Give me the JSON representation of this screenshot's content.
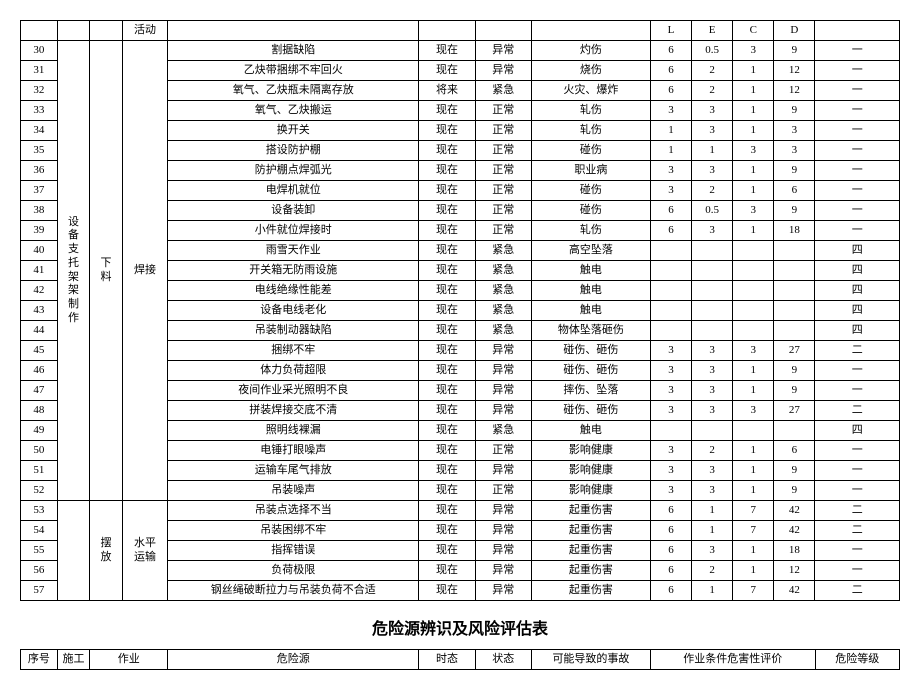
{
  "header_activity": "活动",
  "header_L": "L",
  "header_E": "E",
  "header_C": "C",
  "header_D": "D",
  "rows": [
    {
      "n": "30",
      "hz": "割据缺陷",
      "st": "现在",
      "zt": "异常",
      "jg": "灼伤",
      "L": "6",
      "E": "0.5",
      "C": "3",
      "D": "9",
      "lv": "一"
    },
    {
      "n": "31",
      "hz": "乙炔带捆绑不牢回火",
      "st": "现在",
      "zt": "异常",
      "jg": "烧伤",
      "L": "6",
      "E": "2",
      "C": "1",
      "D": "12",
      "lv": "一"
    },
    {
      "n": "32",
      "hz": "氧气、乙炔瓶未隔离存放",
      "st": "将来",
      "zt": "紧急",
      "jg": "火灾、爆炸",
      "L": "6",
      "E": "2",
      "C": "1",
      "D": "12",
      "lv": "一"
    },
    {
      "n": "33",
      "hz": "氧气、乙炔搬运",
      "st": "现在",
      "zt": "正常",
      "jg": "轧伤",
      "L": "3",
      "E": "3",
      "C": "1",
      "D": "9",
      "lv": "一"
    },
    {
      "n": "34",
      "hz": "换开关",
      "st": "现在",
      "zt": "正常",
      "jg": "轧伤",
      "L": "1",
      "E": "3",
      "C": "1",
      "D": "3",
      "lv": "一"
    },
    {
      "n": "35",
      "hz": "搭设防护棚",
      "st": "现在",
      "zt": "正常",
      "jg": "碰伤",
      "L": "1",
      "E": "1",
      "C": "3",
      "D": "3",
      "lv": "一"
    },
    {
      "n": "36",
      "hz": "防护棚点焊弧光",
      "st": "现在",
      "zt": "正常",
      "jg": "职业病",
      "L": "3",
      "E": "3",
      "C": "1",
      "D": "9",
      "lv": "一"
    },
    {
      "n": "37",
      "hz": "电焊机就位",
      "st": "现在",
      "zt": "正常",
      "jg": "碰伤",
      "L": "3",
      "E": "2",
      "C": "1",
      "D": "6",
      "lv": "一"
    },
    {
      "n": "38",
      "hz": "设备装卸",
      "st": "现在",
      "zt": "正常",
      "jg": "碰伤",
      "L": "6",
      "E": "0.5",
      "C": "3",
      "D": "9",
      "lv": "一"
    },
    {
      "n": "39",
      "hz": "小件就位焊接时",
      "st": "现在",
      "zt": "正常",
      "jg": "轧伤",
      "L": "6",
      "E": "3",
      "C": "1",
      "D": "18",
      "lv": "一"
    },
    {
      "n": "40",
      "hz": "雨雪天作业",
      "st": "现在",
      "zt": "紧急",
      "jg": "高空坠落",
      "L": "",
      "E": "",
      "C": "",
      "D": "",
      "lv": "四"
    },
    {
      "n": "41",
      "hz": "开关箱无防雨设施",
      "st": "现在",
      "zt": "紧急",
      "jg": "触电",
      "L": "",
      "E": "",
      "C": "",
      "D": "",
      "lv": "四"
    },
    {
      "n": "42",
      "hz": "电线绝缘性能差",
      "st": "现在",
      "zt": "紧急",
      "jg": "触电",
      "L": "",
      "E": "",
      "C": "",
      "D": "",
      "lv": "四"
    },
    {
      "n": "43",
      "hz": "设备电线老化",
      "st": "现在",
      "zt": "紧急",
      "jg": "触电",
      "L": "",
      "E": "",
      "C": "",
      "D": "",
      "lv": "四"
    },
    {
      "n": "44",
      "hz": "吊装制动器缺陷",
      "st": "现在",
      "zt": "紧急",
      "jg": "物体坠落砸伤",
      "L": "",
      "E": "",
      "C": "",
      "D": "",
      "lv": "四"
    },
    {
      "n": "45",
      "hz": "捆绑不牢",
      "st": "现在",
      "zt": "异常",
      "jg": "碰伤、砸伤",
      "L": "3",
      "E": "3",
      "C": "3",
      "D": "27",
      "lv": "二"
    },
    {
      "n": "46",
      "hz": "体力负荷超限",
      "st": "现在",
      "zt": "异常",
      "jg": "碰伤、砸伤",
      "L": "3",
      "E": "3",
      "C": "1",
      "D": "9",
      "lv": "一"
    },
    {
      "n": "47",
      "hz": "夜间作业采光照明不良",
      "st": "现在",
      "zt": "异常",
      "jg": "摔伤、坠落",
      "L": "3",
      "E": "3",
      "C": "1",
      "D": "9",
      "lv": "一"
    },
    {
      "n": "48",
      "hz": "拼装焊接交底不清",
      "st": "现在",
      "zt": "异常",
      "jg": "碰伤、砸伤",
      "L": "3",
      "E": "3",
      "C": "3",
      "D": "27",
      "lv": "二"
    },
    {
      "n": "49",
      "hz": "照明线裸漏",
      "st": "现在",
      "zt": "紧急",
      "jg": "触电",
      "L": "",
      "E": "",
      "C": "",
      "D": "",
      "lv": "四"
    },
    {
      "n": "50",
      "hz": "电锤打眼噪声",
      "st": "现在",
      "zt": "正常",
      "jg": "影响健康",
      "L": "3",
      "E": "2",
      "C": "1",
      "D": "6",
      "lv": "一"
    },
    {
      "n": "51",
      "hz": "运输车尾气排放",
      "st": "现在",
      "zt": "异常",
      "jg": "影响健康",
      "L": "3",
      "E": "3",
      "C": "1",
      "D": "9",
      "lv": "一"
    },
    {
      "n": "52",
      "hz": "吊装噪声",
      "st": "现在",
      "zt": "正常",
      "jg": "影响健康",
      "L": "3",
      "E": "3",
      "C": "1",
      "D": "9",
      "lv": "一"
    },
    {
      "n": "53",
      "hz": "吊装点选择不当",
      "st": "现在",
      "zt": "异常",
      "jg": "起重伤害",
      "L": "6",
      "E": "1",
      "C": "7",
      "D": "42",
      "lv": "二"
    },
    {
      "n": "54",
      "hz": "吊装困绑不牢",
      "st": "现在",
      "zt": "异常",
      "jg": "起重伤害",
      "L": "6",
      "E": "1",
      "C": "7",
      "D": "42",
      "lv": "二"
    },
    {
      "n": "55",
      "hz": "指挥错误",
      "st": "现在",
      "zt": "异常",
      "jg": "起重伤害",
      "L": "6",
      "E": "3",
      "C": "1",
      "D": "18",
      "lv": "一"
    },
    {
      "n": "56",
      "hz": "负荷极限",
      "st": "现在",
      "zt": "异常",
      "jg": "起重伤害",
      "L": "6",
      "E": "2",
      "C": "1",
      "D": "12",
      "lv": "一"
    },
    {
      "n": "57",
      "hz": "钢丝绳破断拉力与吊装负荷不合适",
      "st": "现在",
      "zt": "异常",
      "jg": "起重伤害",
      "L": "6",
      "E": "1",
      "C": "7",
      "D": "42",
      "lv": "二"
    }
  ],
  "group1_sg": "设备支托架架制作",
  "group1_zy1": "下料",
  "group1_zy2": "焊接",
  "group2_zy1": "摆放",
  "group2_zy2": "水平运输",
  "title": "危险源辨识及风险评估表",
  "footer": {
    "seq": "序号",
    "sg": "施工",
    "zy": "作业",
    "hz": "危险源",
    "st": "时态",
    "zt": "状态",
    "jg": "可能导致的事故",
    "eval": "作业条件危害性评价",
    "lv": "危险等级"
  }
}
